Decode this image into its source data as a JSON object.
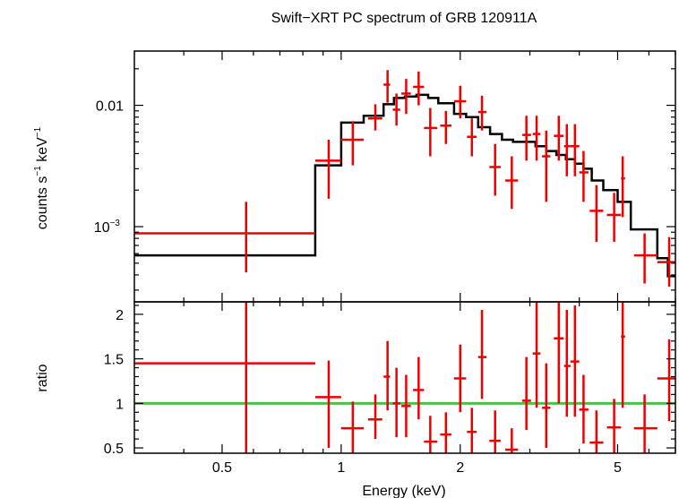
{
  "chart_data": {
    "type": "scatter",
    "title": "Swift−XRT PC spectrum of GRB 120911A",
    "xlabel": "Energy (keV)",
    "xscale": "log",
    "xlim": [
      0.3,
      7.0
    ],
    "xticks": [
      {
        "value": 0.5,
        "label": "0.5"
      },
      {
        "value": 1,
        "label": "1"
      },
      {
        "value": 2,
        "label": "2"
      },
      {
        "value": 5,
        "label": "5"
      }
    ],
    "top_panel": {
      "ylabel_main": "counts s",
      "ylabel_exp1": "−1",
      "ylabel_unit": " keV",
      "ylabel_exp2": "−1",
      "yscale": "log",
      "ylim": [
        0.00024,
        0.028
      ],
      "ytick_labels": [
        {
          "value": 0.01,
          "label": "0.01"
        },
        {
          "value": 0.001,
          "label": "10",
          "exp": "−3"
        }
      ],
      "data": [
        {
          "x": 0.575,
          "xerr": [
            0.3,
            0.86
          ],
          "y": 0.00088,
          "yerr": [
            0.00042,
            0.0016
          ]
        },
        {
          "x": 0.93,
          "xerr": [
            0.86,
            1.0
          ],
          "y": 0.0035,
          "yerr": [
            0.0017,
            0.0052
          ]
        },
        {
          "x": 1.07,
          "xerr": [
            1.0,
            1.14
          ],
          "y": 0.0052,
          "yerr": [
            0.0032,
            0.0074
          ]
        },
        {
          "x": 1.22,
          "xerr": [
            1.17,
            1.27
          ],
          "y": 0.0078,
          "yerr": [
            0.0062,
            0.0102
          ]
        },
        {
          "x": 1.31,
          "xerr": [
            1.28,
            1.33
          ],
          "y": 0.0148,
          "yerr": [
            0.0105,
            0.0195
          ]
        },
        {
          "x": 1.38,
          "xerr": [
            1.35,
            1.41
          ],
          "y": 0.0092,
          "yerr": [
            0.0068,
            0.0125
          ]
        },
        {
          "x": 1.46,
          "xerr": [
            1.42,
            1.5
          ],
          "y": 0.0125,
          "yerr": [
            0.0085,
            0.0165
          ]
        },
        {
          "x": 1.57,
          "xerr": [
            1.52,
            1.62
          ],
          "y": 0.0142,
          "yerr": [
            0.01,
            0.019
          ]
        },
        {
          "x": 1.68,
          "xerr": [
            1.62,
            1.75
          ],
          "y": 0.0065,
          "yerr": [
            0.0038,
            0.0095
          ]
        },
        {
          "x": 1.84,
          "xerr": [
            1.78,
            1.9
          ],
          "y": 0.0068,
          "yerr": [
            0.0048,
            0.009
          ]
        },
        {
          "x": 2.0,
          "xerr": [
            1.93,
            2.07
          ],
          "y": 0.0108,
          "yerr": [
            0.0078,
            0.0145
          ]
        },
        {
          "x": 2.14,
          "xerr": [
            2.08,
            2.2
          ],
          "y": 0.0055,
          "yerr": [
            0.0038,
            0.0078
          ]
        },
        {
          "x": 2.27,
          "xerr": [
            2.22,
            2.33
          ],
          "y": 0.0088,
          "yerr": [
            0.0062,
            0.012
          ]
        },
        {
          "x": 2.45,
          "xerr": [
            2.37,
            2.53
          ],
          "y": 0.0031,
          "yerr": [
            0.0018,
            0.0048
          ]
        },
        {
          "x": 2.7,
          "xerr": [
            2.6,
            2.8
          ],
          "y": 0.0024,
          "yerr": [
            0.0014,
            0.0038
          ]
        },
        {
          "x": 2.94,
          "xerr": [
            2.87,
            3.02
          ],
          "y": 0.0057,
          "yerr": [
            0.0035,
            0.0082
          ]
        },
        {
          "x": 3.12,
          "xerr": [
            3.05,
            3.19
          ],
          "y": 0.0058,
          "yerr": [
            0.0035,
            0.0082
          ]
        },
        {
          "x": 3.3,
          "xerr": [
            3.22,
            3.38
          ],
          "y": 0.0038,
          "yerr": [
            0.0016,
            0.0062
          ]
        },
        {
          "x": 3.55,
          "xerr": [
            3.45,
            3.65
          ],
          "y": 0.0056,
          "yerr": [
            0.0035,
            0.0082
          ]
        },
        {
          "x": 3.72,
          "xerr": [
            3.66,
            3.8
          ],
          "y": 0.0046,
          "yerr": [
            0.0026,
            0.007
          ]
        },
        {
          "x": 3.9,
          "xerr": [
            3.8,
            4.0
          ],
          "y": 0.0046,
          "yerr": [
            0.0026,
            0.007
          ]
        },
        {
          "x": 4.1,
          "xerr": [
            4.0,
            4.22
          ],
          "y": 0.0028,
          "yerr": [
            0.0016,
            0.0042
          ]
        },
        {
          "x": 4.42,
          "xerr": [
            4.25,
            4.6
          ],
          "y": 0.00135,
          "yerr": [
            0.00075,
            0.0022
          ]
        },
        {
          "x": 4.9,
          "xerr": [
            4.7,
            5.1
          ],
          "y": 0.00125,
          "yerr": [
            0.00075,
            0.0019
          ]
        },
        {
          "x": 5.15,
          "xerr": [
            5.1,
            5.22
          ],
          "y": 0.0025,
          "yerr": [
            0.0012,
            0.0038
          ]
        },
        {
          "x": 5.85,
          "xerr": [
            5.5,
            6.3
          ],
          "y": 0.00058,
          "yerr": [
            0.00034,
            0.00088
          ]
        },
        {
          "x": 6.75,
          "xerr": [
            6.3,
            7.0
          ],
          "y": 0.00051,
          "yerr": [
            0.00032,
            0.00082
          ]
        }
      ],
      "model": {
        "edges": [
          0.3,
          0.86,
          1.0,
          1.14,
          1.28,
          1.36,
          1.45,
          1.55,
          1.66,
          1.76,
          1.93,
          2.07,
          2.22,
          2.38,
          2.55,
          2.72,
          2.9,
          3.1,
          3.3,
          3.5,
          3.7,
          3.9,
          4.1,
          4.3,
          4.6,
          5.0,
          5.4,
          6.3,
          6.7,
          7.0
        ],
        "values": [
          0.00058,
          0.0032,
          0.0072,
          0.0082,
          0.0102,
          0.0115,
          0.0118,
          0.0122,
          0.0115,
          0.0104,
          0.0085,
          0.008,
          0.0066,
          0.0058,
          0.0052,
          0.005,
          0.005,
          0.0046,
          0.0042,
          0.0039,
          0.0036,
          0.0033,
          0.003,
          0.0024,
          0.002,
          0.0016,
          0.00095,
          0.00055,
          0.00039
        ]
      }
    },
    "bottom_panel": {
      "ylabel": "ratio",
      "ylim": [
        0.44,
        2.14
      ],
      "yticks": [
        {
          "value": 0.5,
          "label": "0.5"
        },
        {
          "value": 1,
          "label": "1"
        },
        {
          "value": 1.5,
          "label": "1.5"
        },
        {
          "value": 2,
          "label": "2"
        }
      ],
      "reference_line": 1.0,
      "data": [
        {
          "x": 0.575,
          "xerr": [
            0.3,
            0.86
          ],
          "y": 1.45,
          "yerr": [
            0.44,
            2.14
          ]
        },
        {
          "x": 0.93,
          "xerr": [
            0.86,
            1.0
          ],
          "y": 1.07,
          "yerr": [
            0.5,
            1.48
          ]
        },
        {
          "x": 1.07,
          "xerr": [
            1.0,
            1.14
          ],
          "y": 0.72,
          "yerr": [
            0.44,
            1.02
          ]
        },
        {
          "x": 1.22,
          "xerr": [
            1.17,
            1.27
          ],
          "y": 0.82,
          "yerr": [
            0.6,
            1.1
          ]
        },
        {
          "x": 1.31,
          "xerr": [
            1.28,
            1.33
          ],
          "y": 1.3,
          "yerr": [
            0.92,
            1.7
          ]
        },
        {
          "x": 1.38,
          "xerr": [
            1.35,
            1.41
          ],
          "y": 1.0,
          "yerr": [
            0.62,
            1.4
          ]
        },
        {
          "x": 1.46,
          "xerr": [
            1.42,
            1.5
          ],
          "y": 0.97,
          "yerr": [
            0.62,
            1.32
          ]
        },
        {
          "x": 1.57,
          "xerr": [
            1.52,
            1.62
          ],
          "y": 1.15,
          "yerr": [
            0.82,
            1.52
          ]
        },
        {
          "x": 1.68,
          "xerr": [
            1.62,
            1.75
          ],
          "y": 0.57,
          "yerr": [
            0.44,
            0.86
          ]
        },
        {
          "x": 1.84,
          "xerr": [
            1.78,
            1.9
          ],
          "y": 0.65,
          "yerr": [
            0.44,
            0.9
          ]
        },
        {
          "x": 2.0,
          "xerr": [
            1.93,
            2.07
          ],
          "y": 1.28,
          "yerr": [
            0.9,
            1.66
          ]
        },
        {
          "x": 2.14,
          "xerr": [
            2.08,
            2.2
          ],
          "y": 0.68,
          "yerr": [
            0.44,
            0.95
          ]
        },
        {
          "x": 2.27,
          "xerr": [
            2.22,
            2.33
          ],
          "y": 1.52,
          "yerr": [
            1.05,
            2.05
          ]
        },
        {
          "x": 2.45,
          "xerr": [
            2.37,
            2.53
          ],
          "y": 0.58,
          "yerr": [
            0.44,
            0.92
          ]
        },
        {
          "x": 2.7,
          "xerr": [
            2.6,
            2.8
          ],
          "y": 0.48,
          "yerr": [
            0.44,
            0.72
          ]
        },
        {
          "x": 2.94,
          "xerr": [
            2.87,
            3.02
          ],
          "y": 1.03,
          "yerr": [
            0.7,
            1.52
          ]
        },
        {
          "x": 3.12,
          "xerr": [
            3.05,
            3.19
          ],
          "y": 1.56,
          "yerr": [
            0.95,
            2.14
          ]
        },
        {
          "x": 3.3,
          "xerr": [
            3.22,
            3.38
          ],
          "y": 0.95,
          "yerr": [
            0.5,
            1.45
          ]
        },
        {
          "x": 3.55,
          "xerr": [
            3.45,
            3.65
          ],
          "y": 1.73,
          "yerr": [
            1.0,
            2.14
          ]
        },
        {
          "x": 3.72,
          "xerr": [
            3.66,
            3.8
          ],
          "y": 1.42,
          "yerr": [
            0.85,
            2.05
          ]
        },
        {
          "x": 3.9,
          "xerr": [
            3.8,
            4.0
          ],
          "y": 1.47,
          "yerr": [
            0.85,
            2.1
          ]
        },
        {
          "x": 4.1,
          "xerr": [
            4.0,
            4.22
          ],
          "y": 0.93,
          "yerr": [
            0.55,
            1.32
          ]
        },
        {
          "x": 4.42,
          "xerr": [
            4.25,
            4.6
          ],
          "y": 0.56,
          "yerr": [
            0.44,
            0.92
          ]
        },
        {
          "x": 4.9,
          "xerr": [
            4.7,
            5.1
          ],
          "y": 0.73,
          "yerr": [
            0.44,
            1.05
          ]
        },
        {
          "x": 5.15,
          "xerr": [
            5.1,
            5.22
          ],
          "y": 1.75,
          "yerr": [
            0.95,
            2.14
          ]
        },
        {
          "x": 5.85,
          "xerr": [
            5.5,
            6.3
          ],
          "y": 0.72,
          "yerr": [
            0.44,
            1.1
          ]
        },
        {
          "x": 6.75,
          "xerr": [
            6.3,
            7.0
          ],
          "y": 1.28,
          "yerr": [
            0.8,
            1.72
          ]
        }
      ]
    },
    "colors": {
      "data": "#ee0000",
      "model": "#000000",
      "reference": "#22dd22",
      "axes": "#000000"
    }
  }
}
